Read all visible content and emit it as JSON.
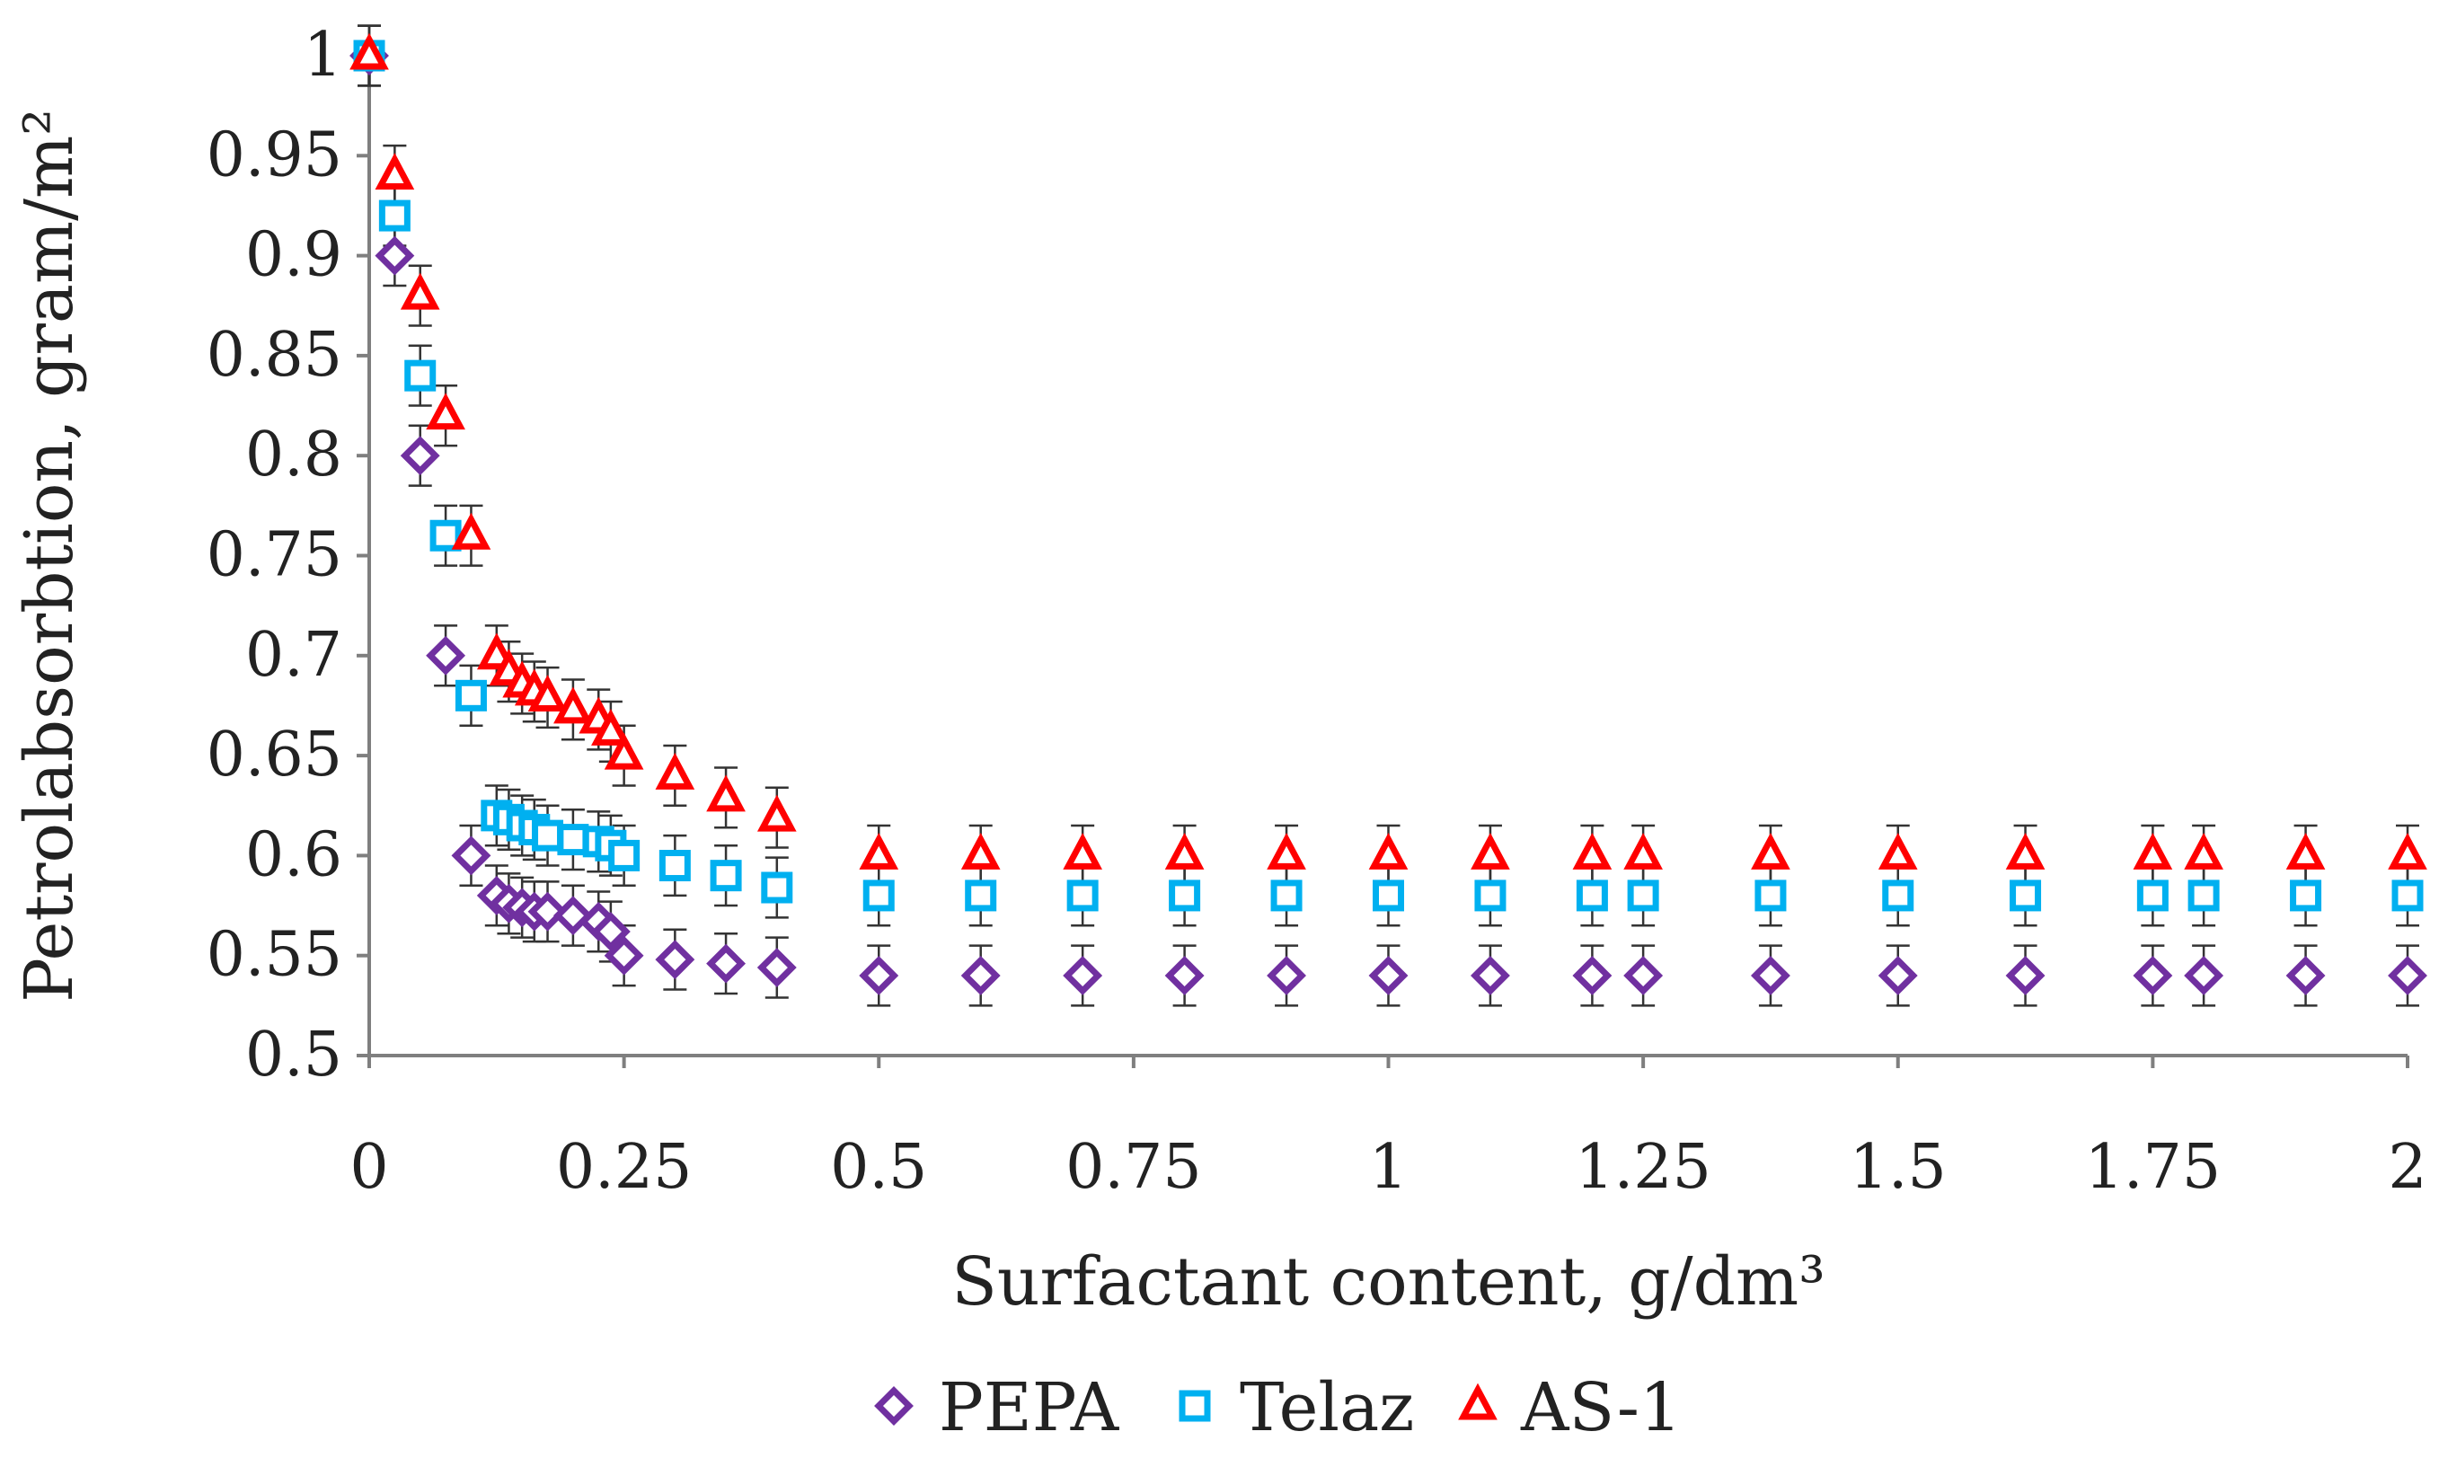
{
  "chart_data": {
    "type": "scatter",
    "title": "",
    "xlabel": "Surfactant content, g/dm³",
    "ylabel": "Petrolabsorbtion, gram/m²",
    "xlim": [
      0,
      2
    ],
    "ylim": [
      0.5,
      1
    ],
    "x_ticks": [
      "0",
      "0.25",
      "0.5",
      "0.75",
      "1",
      "1.25",
      "1.5",
      "1.75",
      "2"
    ],
    "y_ticks": [
      "0.5",
      "0.55",
      "0.6",
      "0.65",
      "0.7",
      "0.75",
      "0.8",
      "0.85",
      "0.9",
      "0.95",
      "1"
    ],
    "legend_position": "bottom-center",
    "error_bar": 0.015,
    "series": [
      {
        "name": "PEPA",
        "marker": "diamond",
        "color": "#7030A0",
        "points": [
          [
            0,
            1.0
          ],
          [
            0.025,
            0.9
          ],
          [
            0.05,
            0.8
          ],
          [
            0.075,
            0.7
          ],
          [
            0.1,
            0.6
          ],
          [
            0.125,
            0.58
          ],
          [
            0.137,
            0.576
          ],
          [
            0.15,
            0.574
          ],
          [
            0.162,
            0.572
          ],
          [
            0.175,
            0.572
          ],
          [
            0.2,
            0.57
          ],
          [
            0.225,
            0.567
          ],
          [
            0.237,
            0.562
          ],
          [
            0.25,
            0.55
          ],
          [
            0.3,
            0.548
          ],
          [
            0.35,
            0.546
          ],
          [
            0.4,
            0.544
          ],
          [
            0.5,
            0.54
          ],
          [
            0.6,
            0.54
          ],
          [
            0.7,
            0.54
          ],
          [
            0.8,
            0.54
          ],
          [
            0.9,
            0.54
          ],
          [
            1.0,
            0.54
          ],
          [
            1.1,
            0.54
          ],
          [
            1.2,
            0.54
          ],
          [
            1.25,
            0.54
          ],
          [
            1.375,
            0.54
          ],
          [
            1.5,
            0.54
          ],
          [
            1.625,
            0.54
          ],
          [
            1.75,
            0.54
          ],
          [
            1.8,
            0.54
          ],
          [
            1.9,
            0.54
          ],
          [
            2.0,
            0.54
          ]
        ]
      },
      {
        "name": "Telaz",
        "marker": "square",
        "color": "#00B0F0",
        "points": [
          [
            0,
            1.0
          ],
          [
            0.025,
            0.92
          ],
          [
            0.05,
            0.84
          ],
          [
            0.075,
            0.76
          ],
          [
            0.1,
            0.68
          ],
          [
            0.125,
            0.62
          ],
          [
            0.137,
            0.618
          ],
          [
            0.15,
            0.615
          ],
          [
            0.162,
            0.613
          ],
          [
            0.175,
            0.61
          ],
          [
            0.2,
            0.608
          ],
          [
            0.225,
            0.607
          ],
          [
            0.237,
            0.605
          ],
          [
            0.25,
            0.6
          ],
          [
            0.3,
            0.595
          ],
          [
            0.35,
            0.59
          ],
          [
            0.4,
            0.584
          ],
          [
            0.5,
            0.58
          ],
          [
            0.6,
            0.58
          ],
          [
            0.7,
            0.58
          ],
          [
            0.8,
            0.58
          ],
          [
            0.9,
            0.58
          ],
          [
            1.0,
            0.58
          ],
          [
            1.1,
            0.58
          ],
          [
            1.2,
            0.58
          ],
          [
            1.25,
            0.58
          ],
          [
            1.375,
            0.58
          ],
          [
            1.5,
            0.58
          ],
          [
            1.625,
            0.58
          ],
          [
            1.75,
            0.58
          ],
          [
            1.8,
            0.58
          ],
          [
            1.9,
            0.58
          ],
          [
            2.0,
            0.58
          ]
        ]
      },
      {
        "name": "AS-1",
        "marker": "triangle",
        "color": "#FF0000",
        "points": [
          [
            0,
            1.0
          ],
          [
            0.025,
            0.94
          ],
          [
            0.05,
            0.88
          ],
          [
            0.075,
            0.82
          ],
          [
            0.1,
            0.76
          ],
          [
            0.125,
            0.7
          ],
          [
            0.137,
            0.692
          ],
          [
            0.15,
            0.686
          ],
          [
            0.162,
            0.682
          ],
          [
            0.175,
            0.679
          ],
          [
            0.2,
            0.673
          ],
          [
            0.225,
            0.668
          ],
          [
            0.237,
            0.662
          ],
          [
            0.25,
            0.65
          ],
          [
            0.3,
            0.64
          ],
          [
            0.35,
            0.629
          ],
          [
            0.4,
            0.619
          ],
          [
            0.5,
            0.6
          ],
          [
            0.6,
            0.6
          ],
          [
            0.7,
            0.6
          ],
          [
            0.8,
            0.6
          ],
          [
            0.9,
            0.6
          ],
          [
            1.0,
            0.6
          ],
          [
            1.1,
            0.6
          ],
          [
            1.2,
            0.6
          ],
          [
            1.25,
            0.6
          ],
          [
            1.375,
            0.6
          ],
          [
            1.5,
            0.6
          ],
          [
            1.625,
            0.6
          ],
          [
            1.75,
            0.6
          ],
          [
            1.8,
            0.6
          ],
          [
            1.9,
            0.6
          ],
          [
            2.0,
            0.6
          ]
        ]
      }
    ]
  }
}
